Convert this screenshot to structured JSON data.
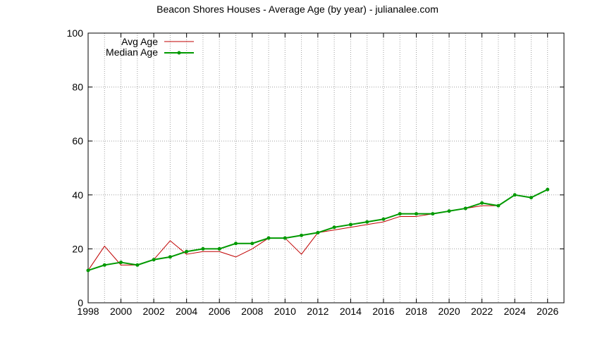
{
  "chart_data": {
    "type": "line",
    "title": "Beacon Shores Houses - Average Age (by year) - julianalee.com",
    "xlabel": "",
    "ylabel": "",
    "xlim": [
      1998,
      2027
    ],
    "ylim": [
      0,
      100
    ],
    "xticks": [
      "1998",
      "2000",
      "2002",
      "2004",
      "2006",
      "2008",
      "2010",
      "2012",
      "2014",
      "2016",
      "2018",
      "2020",
      "2022",
      "2024",
      "2026"
    ],
    "yticks": [
      "0",
      "20",
      "40",
      "60",
      "80",
      "100"
    ],
    "grid": true,
    "legend_position": "top-left",
    "x": [
      1998,
      1999,
      2000,
      2001,
      2002,
      2003,
      2004,
      2005,
      2006,
      2007,
      2008,
      2009,
      2010,
      2011,
      2012,
      2013,
      2014,
      2015,
      2016,
      2017,
      2018,
      2019,
      2020,
      2021,
      2022,
      2023,
      2024,
      2025,
      2026
    ],
    "series": [
      {
        "name": "Avg Age",
        "color": "#c00000",
        "markers": false,
        "values": [
          12,
          21,
          14,
          14,
          16,
          23,
          18,
          19,
          19,
          17,
          20,
          24,
          24,
          18,
          26,
          27,
          28,
          29,
          30,
          32,
          32,
          33,
          34,
          35,
          36,
          36,
          40,
          39,
          42
        ]
      },
      {
        "name": "Median Age",
        "color": "#009900",
        "markers": true,
        "values": [
          12,
          14,
          15,
          14,
          16,
          17,
          19,
          20,
          20,
          22,
          22,
          24,
          24,
          25,
          26,
          28,
          29,
          30,
          31,
          33,
          33,
          33,
          34,
          35,
          37,
          36,
          40,
          39,
          42
        ]
      }
    ]
  }
}
